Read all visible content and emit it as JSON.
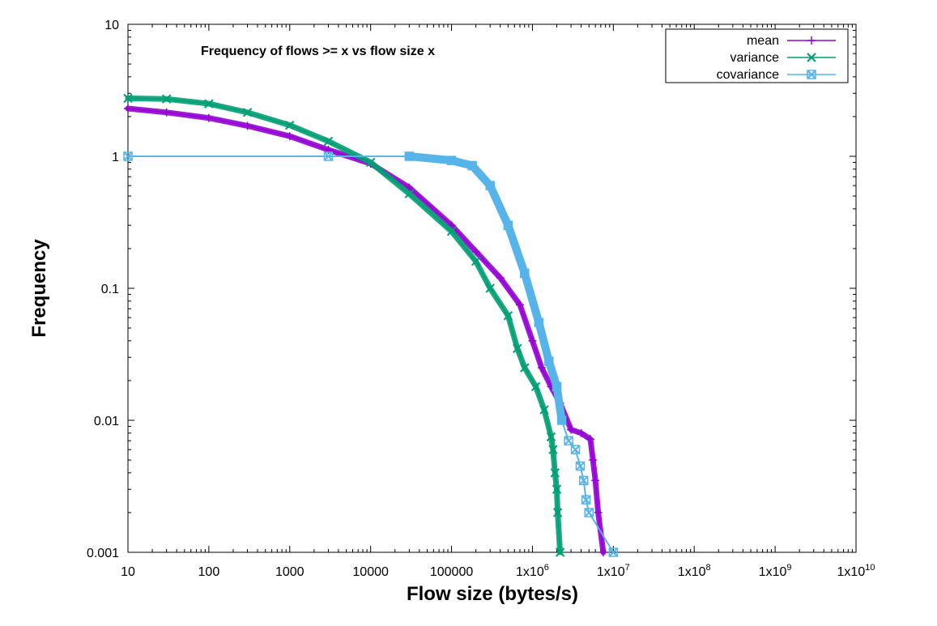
{
  "chart_data": {
    "type": "line",
    "title": "Frequency of flows >= x vs flow size x",
    "xlabel": "Flow size (bytes/s)",
    "ylabel": "Frequency",
    "xscale": "log",
    "yscale": "log",
    "xlim": [
      10,
      10000000000
    ],
    "ylim": [
      0.001,
      10
    ],
    "grid": false,
    "legend_position": "top-right",
    "x_ticks": [
      {
        "value": 10,
        "label": "10",
        "base": "",
        "exp": ""
      },
      {
        "value": 100,
        "label": "100",
        "base": "",
        "exp": ""
      },
      {
        "value": 1000,
        "label": "1000",
        "base": "",
        "exp": ""
      },
      {
        "value": 10000,
        "label": "10000",
        "base": "",
        "exp": ""
      },
      {
        "value": 100000,
        "label": "100000",
        "base": "",
        "exp": ""
      },
      {
        "value": 1000000,
        "label": "",
        "base": "1x10",
        "exp": "6"
      },
      {
        "value": 10000000,
        "label": "",
        "base": "1x10",
        "exp": "7"
      },
      {
        "value": 100000000,
        "label": "",
        "base": "1x10",
        "exp": "8"
      },
      {
        "value": 1000000000,
        "label": "",
        "base": "1x10",
        "exp": "9"
      },
      {
        "value": 10000000000,
        "label": "",
        "base": "1x10",
        "exp": "10"
      }
    ],
    "y_ticks": [
      {
        "value": 0.001,
        "label": "0.001"
      },
      {
        "value": 0.01,
        "label": "0.01"
      },
      {
        "value": 0.1,
        "label": "0.1"
      },
      {
        "value": 1,
        "label": "1"
      },
      {
        "value": 10,
        "label": "10"
      }
    ],
    "series": [
      {
        "name": "mean",
        "color": "#9400d3",
        "marker": "plus",
        "points": [
          [
            10,
            2.3
          ],
          [
            30,
            2.15
          ],
          [
            100,
            1.95
          ],
          [
            300,
            1.7
          ],
          [
            1000,
            1.42
          ],
          [
            3000,
            1.12
          ],
          [
            10000,
            0.88
          ],
          [
            30000,
            0.58
          ],
          [
            100000,
            0.3
          ],
          [
            200000,
            0.19
          ],
          [
            400000,
            0.12
          ],
          [
            700000,
            0.075
          ],
          [
            1000000,
            0.04
          ],
          [
            1300000,
            0.025
          ],
          [
            1700000,
            0.018
          ],
          [
            2200000,
            0.0135
          ],
          [
            3000000,
            0.0085
          ],
          [
            4000000,
            0.008
          ],
          [
            5200000,
            0.0072
          ],
          [
            5600000,
            0.005
          ],
          [
            6000000,
            0.0035
          ],
          [
            6500000,
            0.002
          ],
          [
            7500000,
            0.001
          ]
        ]
      },
      {
        "name": "variance",
        "color": "#009e73",
        "marker": "x",
        "points": [
          [
            10,
            2.75
          ],
          [
            30,
            2.72
          ],
          [
            100,
            2.5
          ],
          [
            300,
            2.15
          ],
          [
            1000,
            1.72
          ],
          [
            3000,
            1.3
          ],
          [
            10000,
            0.9
          ],
          [
            30000,
            0.52
          ],
          [
            100000,
            0.27
          ],
          [
            200000,
            0.16
          ],
          [
            300000,
            0.1
          ],
          [
            500000,
            0.062
          ],
          [
            650000,
            0.035
          ],
          [
            800000,
            0.025
          ],
          [
            1100000,
            0.018
          ],
          [
            1400000,
            0.012
          ],
          [
            1700000,
            0.0075
          ],
          [
            1800000,
            0.006
          ],
          [
            1900000,
            0.004
          ],
          [
            2000000,
            0.003
          ],
          [
            2050000,
            0.002
          ],
          [
            2200000,
            0.001
          ]
        ]
      },
      {
        "name": "covariance",
        "color": "#56b4e9",
        "marker": "box-x",
        "points": [
          [
            10,
            1.0
          ],
          [
            3000,
            1.0
          ],
          [
            30000,
            1.0
          ],
          [
            100000,
            0.93
          ],
          [
            180000,
            0.85
          ],
          [
            300000,
            0.6
          ],
          [
            500000,
            0.3
          ],
          [
            800000,
            0.13
          ],
          [
            1200000,
            0.055
          ],
          [
            1600000,
            0.028
          ],
          [
            2000000,
            0.018
          ],
          [
            2300000,
            0.01
          ],
          [
            2800000,
            0.007
          ],
          [
            3400000,
            0.006
          ],
          [
            3900000,
            0.0045
          ],
          [
            4300000,
            0.0035
          ],
          [
            4600000,
            0.0025
          ],
          [
            5000000,
            0.002
          ],
          [
            10000000,
            0.001
          ]
        ]
      }
    ]
  }
}
